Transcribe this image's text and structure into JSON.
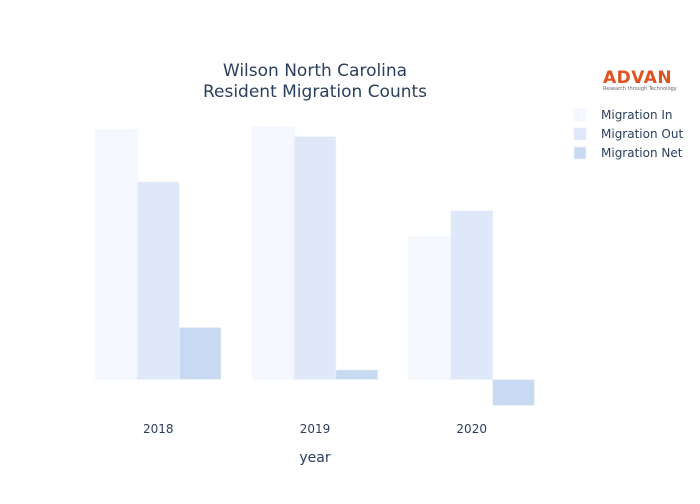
{
  "chart_data": {
    "type": "bar",
    "title_line1": "Wilson North Carolina",
    "title_line2": "Resident Migration Counts",
    "xlabel": "year",
    "ylabel": "",
    "categories": [
      "2018",
      "2019",
      "2020"
    ],
    "series": [
      {
        "name": "Migration In",
        "values": [
          2590,
          2620,
          1480
        ],
        "color": "#f5f8fe"
      },
      {
        "name": "Migration Out",
        "values": [
          2050,
          2520,
          1750
        ],
        "color": "#dfe8f8"
      },
      {
        "name": "Migration Net",
        "values": [
          540,
          100,
          -270
        ],
        "color": "#c7daf1"
      }
    ],
    "ylim": [
      -420,
      2900
    ],
    "grid": false,
    "legend": "top-right"
  },
  "logo": {
    "name": "ADVAN",
    "tagline": "Research through Technology",
    "color": "#e0521f"
  }
}
